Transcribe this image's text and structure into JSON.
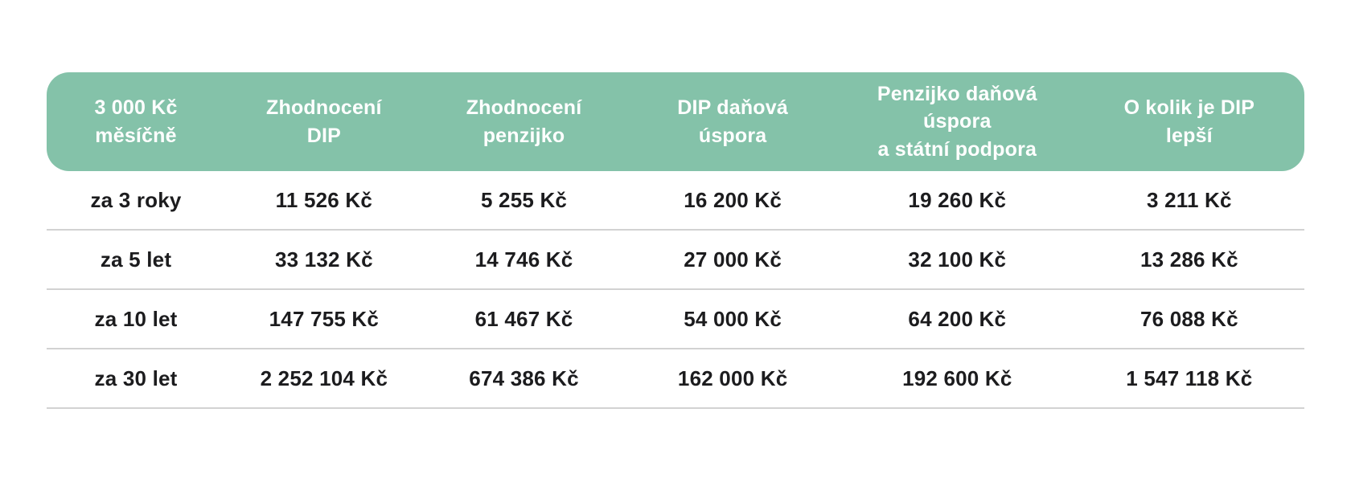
{
  "colors": {
    "header_bg": "#84c2a9",
    "header_text": "#ffffff",
    "body_text": "#1c1c1e",
    "divider": "#d2d2d2",
    "page_bg": "#ffffff"
  },
  "chart_data": {
    "type": "table",
    "title": "",
    "currency": "Kč",
    "headers": [
      {
        "label": "3 000 Kč měsíčně",
        "display": "3 000 Kč\nměsíčně"
      },
      {
        "label": "Zhodnocení DIP",
        "display": "Zhodnocení\nDIP"
      },
      {
        "label": "Zhodnocení penzijko",
        "display": "Zhodnocení\npenzijko"
      },
      {
        "label": "DIP daňová úspora",
        "display": "DIP daňová\núspora"
      },
      {
        "label": "Penzijko daňová úspora a státní podpora",
        "display": "Penzijko daňová úspora\na státní podpora"
      },
      {
        "label": "O kolik je DIP lepší",
        "display": "O kolik je DIP\nlepší"
      }
    ],
    "rows": [
      {
        "cells": [
          "za 3 roky",
          "11 526 Kč",
          "5 255 Kč",
          "16 200 Kč",
          "19 260 Kč",
          "3 211 Kč"
        ]
      },
      {
        "cells": [
          "za 5 let",
          "33 132 Kč",
          "14 746 Kč",
          "27 000 Kč",
          "32 100 Kč",
          "13 286 Kč"
        ]
      },
      {
        "cells": [
          "za 10 let",
          "147 755 Kč",
          "61 467 Kč",
          "54 000 Kč",
          "64 200 Kč",
          "76 088 Kč"
        ]
      },
      {
        "cells": [
          "za 30 let",
          "2 252 104 Kč",
          "674 386 Kč",
          "162 000 Kč",
          "192 600 Kč",
          "1 547 118 Kč"
        ]
      }
    ]
  }
}
